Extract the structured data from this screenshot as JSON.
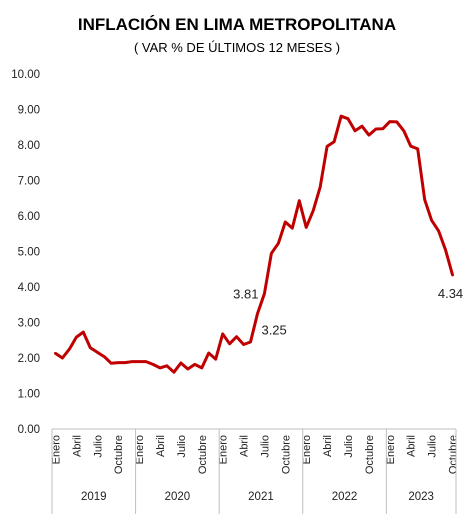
{
  "chart_data": {
    "type": "line",
    "title": "INFLACIÓN EN LIMA METROPOLITANA",
    "subtitle": "( VAR % DE ÚLTIMOS 12 MESES )",
    "ylim": [
      0,
      10
    ],
    "yticks": [
      "0.00",
      "1.00",
      "2.00",
      "3.00",
      "4.00",
      "5.00",
      "6.00",
      "7.00",
      "8.00",
      "9.00",
      "10.00"
    ],
    "grid": false,
    "line_color": "#c00000",
    "tick_month_labels": [
      "Enero",
      "Abril",
      "Julio",
      "Octubre"
    ],
    "years": [
      "2019",
      "2020",
      "2021",
      "2022",
      "2023"
    ],
    "x": [
      "2019-01",
      "2019-02",
      "2019-03",
      "2019-04",
      "2019-05",
      "2019-06",
      "2019-07",
      "2019-08",
      "2019-09",
      "2019-10",
      "2019-11",
      "2019-12",
      "2020-01",
      "2020-02",
      "2020-03",
      "2020-04",
      "2020-05",
      "2020-06",
      "2020-07",
      "2020-08",
      "2020-09",
      "2020-10",
      "2020-11",
      "2020-12",
      "2021-01",
      "2021-02",
      "2021-03",
      "2021-04",
      "2021-05",
      "2021-06",
      "2021-07",
      "2021-08",
      "2021-09",
      "2021-10",
      "2021-11",
      "2021-12",
      "2022-01",
      "2022-02",
      "2022-03",
      "2022-04",
      "2022-05",
      "2022-06",
      "2022-07",
      "2022-08",
      "2022-09",
      "2022-10",
      "2022-11",
      "2022-12",
      "2023-01",
      "2023-02",
      "2023-03",
      "2023-04",
      "2023-05",
      "2023-06",
      "2023-07",
      "2023-08",
      "2023-09",
      "2023-10"
    ],
    "values": [
      2.13,
      2.0,
      2.25,
      2.59,
      2.73,
      2.29,
      2.16,
      2.04,
      1.85,
      1.87,
      1.87,
      1.9,
      1.9,
      1.9,
      1.82,
      1.72,
      1.78,
      1.6,
      1.86,
      1.69,
      1.82,
      1.72,
      2.14,
      1.97,
      2.68,
      2.4,
      2.6,
      2.38,
      2.45,
      3.25,
      3.81,
      4.95,
      5.23,
      5.83,
      5.66,
      6.43,
      5.68,
      6.15,
      6.82,
      7.96,
      8.09,
      8.81,
      8.74,
      8.4,
      8.53,
      8.28,
      8.45,
      8.46,
      8.66,
      8.65,
      8.4,
      7.97,
      7.89,
      6.46,
      5.88,
      5.58,
      5.04,
      4.34
    ],
    "data_labels": [
      {
        "index": 30,
        "text": "3.81"
      },
      {
        "index": 29,
        "text": "3.25"
      },
      {
        "index": 57,
        "text": "4.34"
      }
    ]
  }
}
